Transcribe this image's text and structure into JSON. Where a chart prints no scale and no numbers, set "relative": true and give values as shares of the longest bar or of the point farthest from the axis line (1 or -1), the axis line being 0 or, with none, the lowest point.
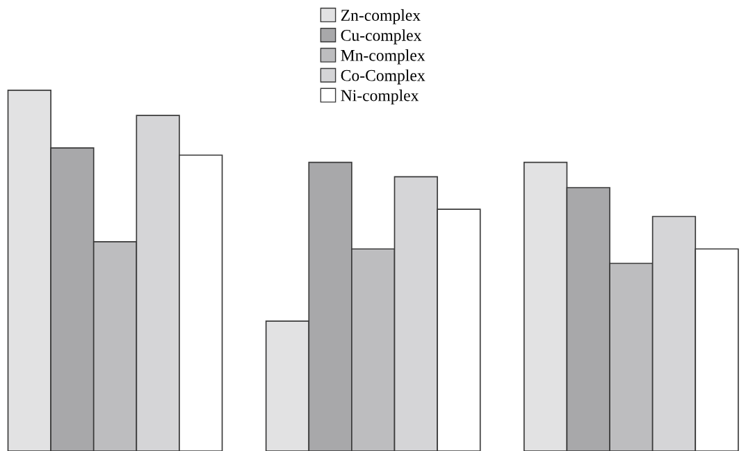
{
  "chart_data": {
    "type": "bar",
    "relative": true,
    "legend": "top",
    "categories": [
      null,
      null,
      null
    ],
    "series": [
      {
        "name": "Zn-complex",
        "color": "#e2e2e3",
        "values": [
          1.0,
          0.36,
          0.8
        ]
      },
      {
        "name": "Cu-complex",
        "color": "#a8a8aa",
        "values": [
          0.84,
          0.8,
          0.73
        ]
      },
      {
        "name": "Mn-complex",
        "color": "#bdbdbf",
        "values": [
          0.58,
          0.56,
          0.52
        ]
      },
      {
        "name": "Co-Complex",
        "color": "#d5d5d7",
        "values": [
          0.93,
          0.76,
          0.65
        ]
      },
      {
        "name": "Ni-complex",
        "color": "#ffffff",
        "values": [
          0.82,
          0.67,
          0.56
        ]
      }
    ]
  }
}
